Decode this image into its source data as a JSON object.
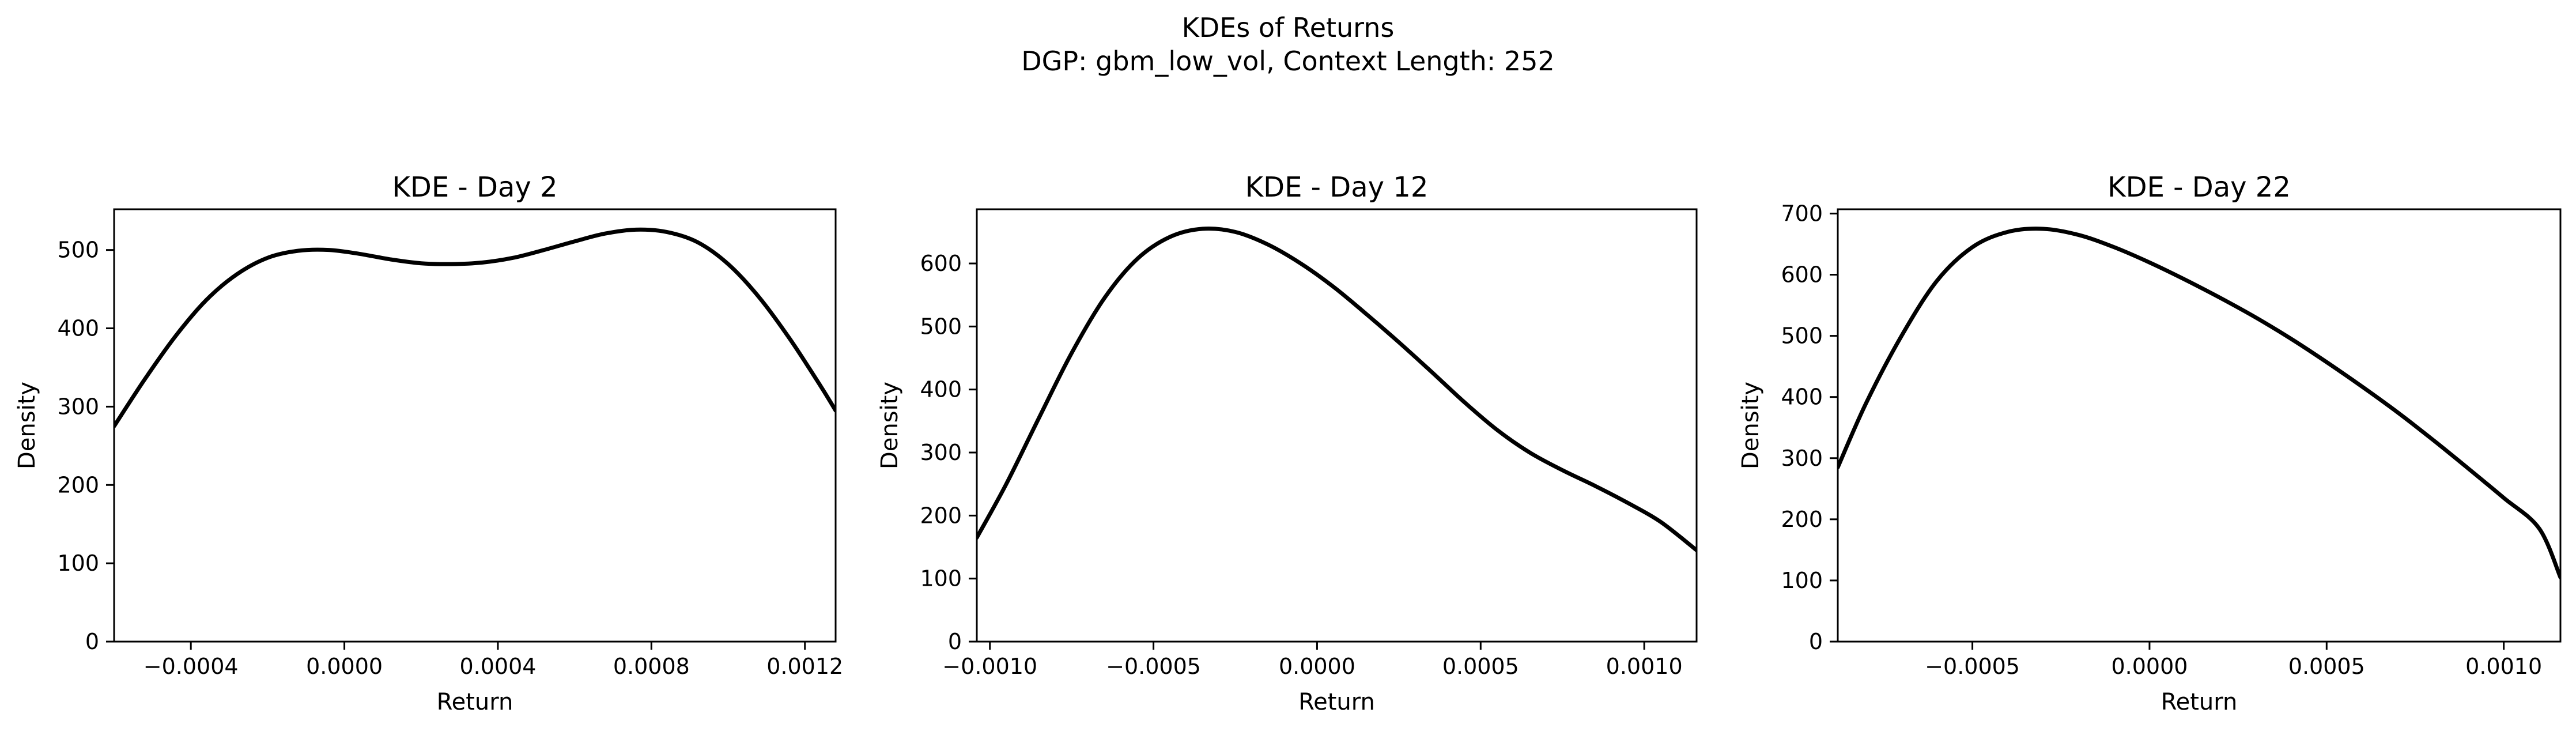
{
  "figure": {
    "title_line1": "KDEs of Returns",
    "title_line2": "DGP: gbm_low_vol, Context Length: 252"
  },
  "chart_data": [
    {
      "type": "line",
      "title": "KDE - Day 2",
      "xlabel": "Return",
      "ylabel": "Density",
      "xlim": [
        -0.0006,
        0.00128
      ],
      "ylim": [
        0,
        552
      ],
      "xticks": [
        -0.0004,
        0.0,
        0.0004,
        0.0008,
        0.0012
      ],
      "xtick_labels": [
        "−0.0004",
        "0.0000",
        "0.0004",
        "0.0008",
        "0.0012"
      ],
      "yticks": [
        0,
        100,
        200,
        300,
        400,
        500
      ],
      "ytick_labels": [
        "0",
        "100",
        "200",
        "300",
        "400",
        "500"
      ],
      "grid": false,
      "line_color": "#000000",
      "series": [
        {
          "x": [
            -0.0006,
            -0.00052,
            -0.00044,
            -0.00036,
            -0.00028,
            -0.0002,
            -0.00012,
            -4e-05,
            4e-05,
            0.00012,
            0.0002,
            0.00028,
            0.00036,
            0.00044,
            0.00052,
            0.0006,
            0.00068,
            0.00076,
            0.00084,
            0.00092,
            0.001,
            0.00108,
            0.00116,
            0.00124,
            0.00128
          ],
          "y": [
            275,
            335,
            390,
            436,
            469,
            490,
            499,
            500,
            495,
            488,
            483,
            482,
            484,
            490,
            500,
            511,
            521,
            526,
            523,
            510,
            482,
            440,
            387,
            327,
            295
          ]
        }
      ]
    },
    {
      "type": "line",
      "title": "KDE - Day 12",
      "xlabel": "Return",
      "ylabel": "Density",
      "xlim": [
        -0.00104,
        0.00116
      ],
      "ylim": [
        0,
        686
      ],
      "xticks": [
        -0.001,
        -0.0005,
        0.0,
        0.0005,
        0.001
      ],
      "xtick_labels": [
        "−0.0010",
        "−0.0005",
        "0.0000",
        "0.0005",
        "0.0010"
      ],
      "yticks": [
        0,
        100,
        200,
        300,
        400,
        500,
        600
      ],
      "ytick_labels": [
        "0",
        "100",
        "200",
        "300",
        "400",
        "500",
        "600"
      ],
      "grid": false,
      "line_color": "#000000",
      "series": [
        {
          "x": [
            -0.00104,
            -0.00095,
            -0.00085,
            -0.00075,
            -0.00065,
            -0.00055,
            -0.00045,
            -0.00035,
            -0.00025,
            -0.00015,
            -5e-05,
            5e-05,
            0.00015,
            0.00025,
            0.00035,
            0.00045,
            0.00055,
            0.00065,
            0.00075,
            0.00085,
            0.00095,
            0.00105,
            0.00116
          ],
          "y": [
            165,
            250,
            355,
            458,
            545,
            607,
            642,
            655,
            650,
            630,
            600,
            563,
            520,
            475,
            428,
            380,
            336,
            300,
            272,
            247,
            220,
            190,
            145
          ]
        }
      ]
    },
    {
      "type": "line",
      "title": "KDE - Day 22",
      "xlabel": "Return",
      "ylabel": "Density",
      "xlim": [
        -0.00088,
        0.00116
      ],
      "ylim": [
        0,
        707
      ],
      "xticks": [
        -0.0005,
        0.0,
        0.0005,
        0.001
      ],
      "xtick_labels": [
        "−0.0005",
        "0.0000",
        "0.0005",
        "0.0010"
      ],
      "yticks": [
        0,
        100,
        200,
        300,
        400,
        500,
        600,
        700
      ],
      "ytick_labels": [
        "0",
        "100",
        "200",
        "300",
        "400",
        "500",
        "600",
        "700"
      ],
      "grid": false,
      "line_color": "#000000",
      "series": [
        {
          "x": [
            -0.00088,
            -0.0008,
            -0.0007,
            -0.0006,
            -0.0005,
            -0.0004,
            -0.0003,
            -0.0002,
            -0.0001,
            0.0,
            0.0001,
            0.0002,
            0.0003,
            0.0004,
            0.0005,
            0.0006,
            0.0007,
            0.0008,
            0.0009,
            0.001,
            0.0011,
            0.00116
          ],
          "y": [
            285,
            390,
            500,
            590,
            645,
            670,
            675,
            665,
            645,
            620,
            592,
            562,
            530,
            495,
            457,
            417,
            375,
            330,
            283,
            235,
            185,
            105
          ]
        }
      ]
    }
  ]
}
